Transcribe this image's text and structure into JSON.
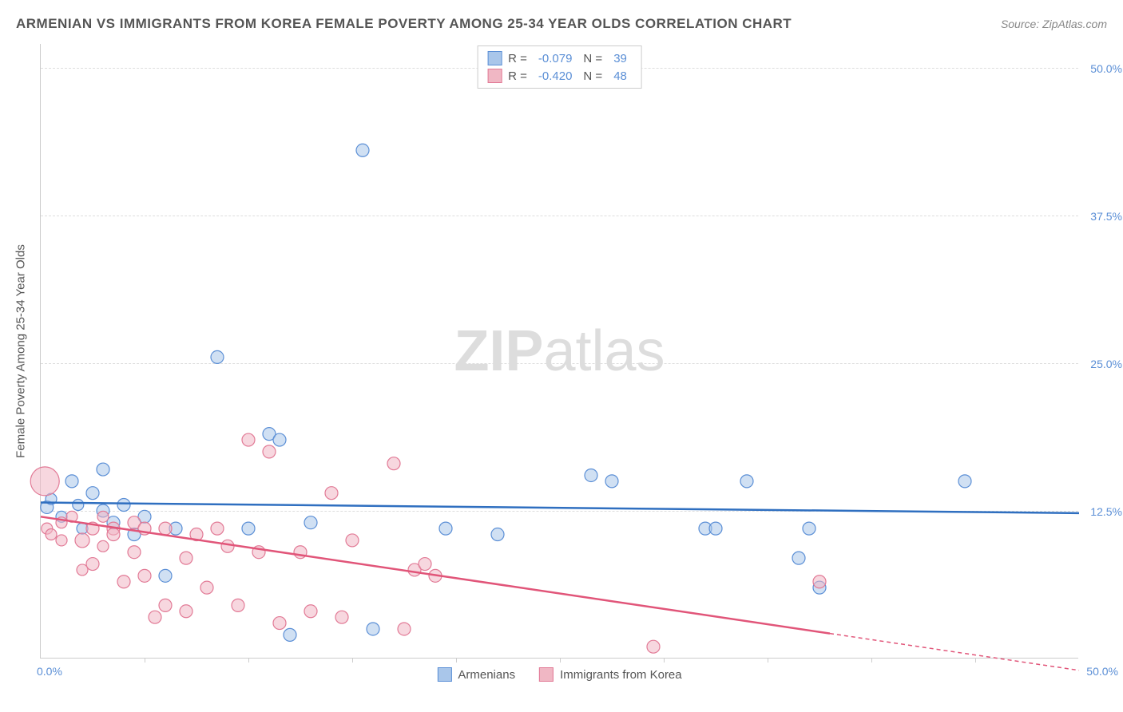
{
  "title": "ARMENIAN VS IMMIGRANTS FROM KOREA FEMALE POVERTY AMONG 25-34 YEAR OLDS CORRELATION CHART",
  "source": "Source: ZipAtlas.com",
  "watermark_a": "ZIP",
  "watermark_b": "atlas",
  "chart": {
    "type": "scatter",
    "xlim": [
      0,
      50
    ],
    "ylim": [
      0,
      52
    ],
    "x_axis_start_label": "0.0%",
    "x_axis_end_label": "50.0%",
    "y_ticks": [
      {
        "v": 12.5,
        "label": "12.5%"
      },
      {
        "v": 25.0,
        "label": "25.0%"
      },
      {
        "v": 37.5,
        "label": "37.5%"
      },
      {
        "v": 50.0,
        "label": "50.0%"
      }
    ],
    "x_tick_positions": [
      5,
      10,
      15,
      20,
      25,
      30,
      35,
      40,
      45
    ],
    "y_axis_title": "Female Poverty Among 25-34 Year Olds",
    "background_color": "#ffffff",
    "grid_color": "#dddddd",
    "series": [
      {
        "name": "Armenians",
        "fill": "#a9c6ea",
        "fill_opacity": 0.55,
        "stroke": "#5b8fd6",
        "line_color": "#2f6fc0",
        "line_width": 2.5,
        "trend": {
          "x1": 0,
          "y1": 13.2,
          "x2": 50,
          "y2": 12.3,
          "solid_until": 50
        },
        "R": "-0.079",
        "N": "39",
        "points": [
          {
            "x": 0.3,
            "y": 12.8,
            "r": 8
          },
          {
            "x": 0.5,
            "y": 13.5,
            "r": 7
          },
          {
            "x": 1.0,
            "y": 12.0,
            "r": 7
          },
          {
            "x": 1.5,
            "y": 15.0,
            "r": 8
          },
          {
            "x": 1.8,
            "y": 13.0,
            "r": 7
          },
          {
            "x": 2.0,
            "y": 11.0,
            "r": 7
          },
          {
            "x": 2.5,
            "y": 14.0,
            "r": 8
          },
          {
            "x": 3.0,
            "y": 12.5,
            "r": 8
          },
          {
            "x": 3.0,
            "y": 16.0,
            "r": 8
          },
          {
            "x": 3.5,
            "y": 11.5,
            "r": 8
          },
          {
            "x": 4.0,
            "y": 13.0,
            "r": 8
          },
          {
            "x": 4.5,
            "y": 10.5,
            "r": 8
          },
          {
            "x": 5.0,
            "y": 12.0,
            "r": 8
          },
          {
            "x": 6.0,
            "y": 7.0,
            "r": 8
          },
          {
            "x": 6.5,
            "y": 11.0,
            "r": 8
          },
          {
            "x": 8.5,
            "y": 25.5,
            "r": 8
          },
          {
            "x": 10.0,
            "y": 11.0,
            "r": 8
          },
          {
            "x": 11.0,
            "y": 19.0,
            "r": 8
          },
          {
            "x": 11.5,
            "y": 18.5,
            "r": 8
          },
          {
            "x": 12.0,
            "y": 2.0,
            "r": 8
          },
          {
            "x": 13.0,
            "y": 11.5,
            "r": 8
          },
          {
            "x": 15.5,
            "y": 43.0,
            "r": 8
          },
          {
            "x": 16.0,
            "y": 2.5,
            "r": 8
          },
          {
            "x": 19.5,
            "y": 11.0,
            "r": 8
          },
          {
            "x": 22.0,
            "y": 10.5,
            "r": 8
          },
          {
            "x": 26.5,
            "y": 15.5,
            "r": 8
          },
          {
            "x": 27.5,
            "y": 15.0,
            "r": 8
          },
          {
            "x": 32.0,
            "y": 11.0,
            "r": 8
          },
          {
            "x": 32.5,
            "y": 11.0,
            "r": 8
          },
          {
            "x": 34.0,
            "y": 15.0,
            "r": 8
          },
          {
            "x": 36.5,
            "y": 8.5,
            "r": 8
          },
          {
            "x": 37.0,
            "y": 11.0,
            "r": 8
          },
          {
            "x": 37.5,
            "y": 6.0,
            "r": 8
          },
          {
            "x": 44.5,
            "y": 15.0,
            "r": 8
          }
        ]
      },
      {
        "name": "Immigrants from Korea",
        "fill": "#f0b7c4",
        "fill_opacity": 0.55,
        "stroke": "#e27a96",
        "line_color": "#e15579",
        "line_width": 2.5,
        "trend": {
          "x1": 0,
          "y1": 12.0,
          "x2": 50,
          "y2": -1.0,
          "solid_until": 38
        },
        "R": "-0.420",
        "N": "48",
        "points": [
          {
            "x": 0.2,
            "y": 15.0,
            "r": 18
          },
          {
            "x": 0.3,
            "y": 11.0,
            "r": 7
          },
          {
            "x": 0.5,
            "y": 10.5,
            "r": 7
          },
          {
            "x": 1.0,
            "y": 11.5,
            "r": 7
          },
          {
            "x": 1.0,
            "y": 10.0,
            "r": 7
          },
          {
            "x": 1.5,
            "y": 12.0,
            "r": 7
          },
          {
            "x": 2.0,
            "y": 10.0,
            "r": 9
          },
          {
            "x": 2.0,
            "y": 7.5,
            "r": 7
          },
          {
            "x": 2.5,
            "y": 11.0,
            "r": 8
          },
          {
            "x": 2.5,
            "y": 8.0,
            "r": 8
          },
          {
            "x": 3.0,
            "y": 12.0,
            "r": 7
          },
          {
            "x": 3.0,
            "y": 9.5,
            "r": 7
          },
          {
            "x": 3.5,
            "y": 11.0,
            "r": 8
          },
          {
            "x": 3.5,
            "y": 10.5,
            "r": 8
          },
          {
            "x": 4.0,
            "y": 6.5,
            "r": 8
          },
          {
            "x": 4.5,
            "y": 11.5,
            "r": 8
          },
          {
            "x": 4.5,
            "y": 9.0,
            "r": 8
          },
          {
            "x": 5.0,
            "y": 11.0,
            "r": 8
          },
          {
            "x": 5.0,
            "y": 7.0,
            "r": 8
          },
          {
            "x": 5.5,
            "y": 3.5,
            "r": 8
          },
          {
            "x": 6.0,
            "y": 11.0,
            "r": 8
          },
          {
            "x": 6.0,
            "y": 4.5,
            "r": 8
          },
          {
            "x": 7.0,
            "y": 8.5,
            "r": 8
          },
          {
            "x": 7.0,
            "y": 4.0,
            "r": 8
          },
          {
            "x": 7.5,
            "y": 10.5,
            "r": 8
          },
          {
            "x": 8.0,
            "y": 6.0,
            "r": 8
          },
          {
            "x": 8.5,
            "y": 11.0,
            "r": 8
          },
          {
            "x": 9.0,
            "y": 9.5,
            "r": 8
          },
          {
            "x": 9.5,
            "y": 4.5,
            "r": 8
          },
          {
            "x": 10.0,
            "y": 18.5,
            "r": 8
          },
          {
            "x": 10.5,
            "y": 9.0,
            "r": 8
          },
          {
            "x": 11.0,
            "y": 17.5,
            "r": 8
          },
          {
            "x": 11.5,
            "y": 3.0,
            "r": 8
          },
          {
            "x": 12.5,
            "y": 9.0,
            "r": 8
          },
          {
            "x": 13.0,
            "y": 4.0,
            "r": 8
          },
          {
            "x": 14.0,
            "y": 14.0,
            "r": 8
          },
          {
            "x": 14.5,
            "y": 3.5,
            "r": 8
          },
          {
            "x": 15.0,
            "y": 10.0,
            "r": 8
          },
          {
            "x": 17.0,
            "y": 16.5,
            "r": 8
          },
          {
            "x": 17.5,
            "y": 2.5,
            "r": 8
          },
          {
            "x": 18.0,
            "y": 7.5,
            "r": 8
          },
          {
            "x": 18.5,
            "y": 8.0,
            "r": 8
          },
          {
            "x": 19.0,
            "y": 7.0,
            "r": 8
          },
          {
            "x": 29.5,
            "y": 1.0,
            "r": 8
          },
          {
            "x": 37.5,
            "y": 6.5,
            "r": 8
          }
        ]
      }
    ]
  },
  "legend_top": [
    {
      "swatch_fill": "#a9c6ea",
      "swatch_stroke": "#5b8fd6",
      "R_label": "R =",
      "R": "-0.079",
      "N_label": "N =",
      "N": "39"
    },
    {
      "swatch_fill": "#f0b7c4",
      "swatch_stroke": "#e27a96",
      "R_label": "R =",
      "R": "-0.420",
      "N_label": "N =",
      "N": "48"
    }
  ],
  "legend_bottom": [
    {
      "swatch_fill": "#a9c6ea",
      "swatch_stroke": "#5b8fd6",
      "label": "Armenians"
    },
    {
      "swatch_fill": "#f0b7c4",
      "swatch_stroke": "#e27a96",
      "label": "Immigrants from Korea"
    }
  ]
}
